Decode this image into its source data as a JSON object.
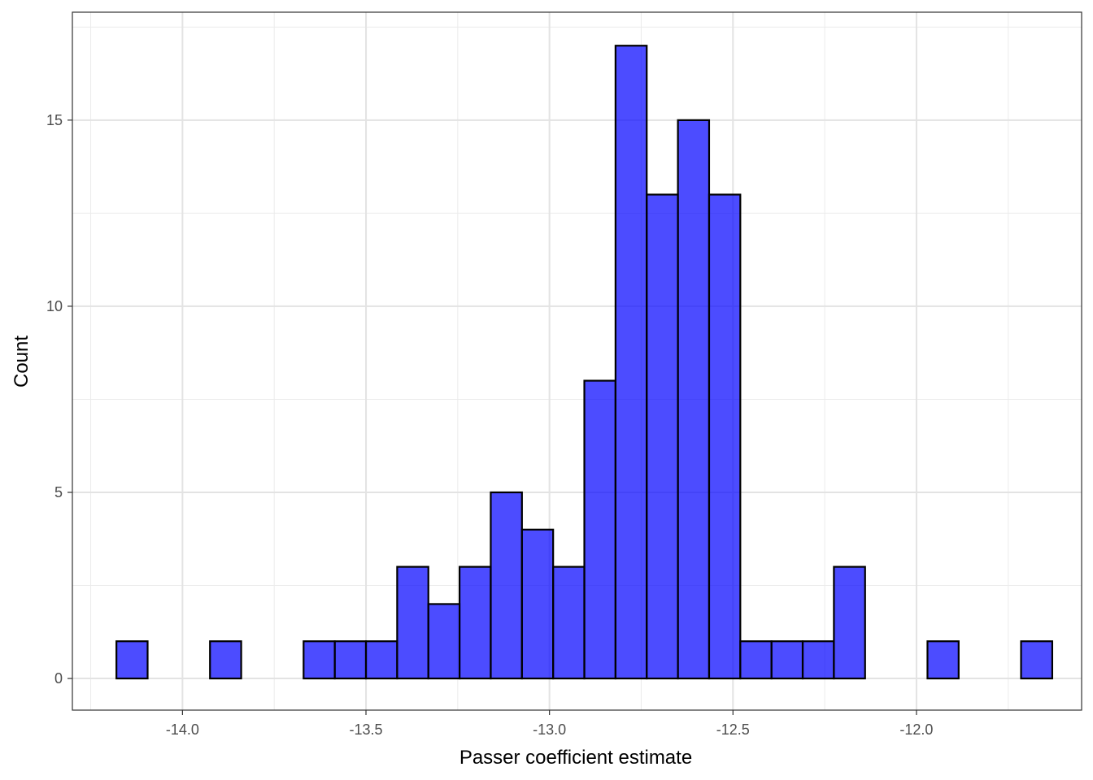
{
  "chart_data": {
    "type": "bar",
    "subtype": "histogram",
    "xlabel": "Passer coefficient estimate",
    "ylabel": "Count",
    "xlim": [
      -14.3,
      -11.55
    ],
    "ylim": [
      -0.85,
      17.9
    ],
    "x_ticks": [
      -14.0,
      -13.5,
      -13.0,
      -12.5,
      -12.0
    ],
    "x_tick_labels": [
      "-14.0",
      "-13.5",
      "-13.0",
      "-12.5",
      "-12.0"
    ],
    "y_ticks": [
      0,
      5,
      10,
      15
    ],
    "y_tick_labels": [
      "0",
      "5",
      "10",
      "15"
    ],
    "x_minor_ticks": [
      -14.25,
      -13.75,
      -13.25,
      -12.75,
      -12.25,
      -11.75
    ],
    "y_minor_ticks": [
      2.5,
      7.5,
      12.5,
      17.5
    ],
    "grid": true,
    "bin_width": 0.085,
    "bins_start": [
      -14.18,
      -14.095,
      -14.01,
      -13.925,
      -13.84,
      -13.755,
      -13.67,
      -13.585,
      -13.5,
      -13.415,
      -13.33,
      -13.245,
      -13.16,
      -13.075,
      -12.99,
      -12.905,
      -12.82,
      -12.735,
      -12.65,
      -12.565,
      -12.48,
      -12.395,
      -12.31,
      -12.225,
      -12.14,
      -12.055,
      -11.97,
      -11.885,
      -11.8,
      -11.715
    ],
    "values": [
      1,
      0,
      0,
      1,
      0,
      0,
      1,
      1,
      1,
      3,
      2,
      3,
      5,
      4,
      3,
      8,
      17,
      13,
      15,
      13,
      1,
      1,
      1,
      3,
      0,
      0,
      1,
      0,
      0,
      1
    ],
    "fill_color": "#0000ff",
    "fill_opacity": 0.7,
    "outline_color": "#000000"
  }
}
